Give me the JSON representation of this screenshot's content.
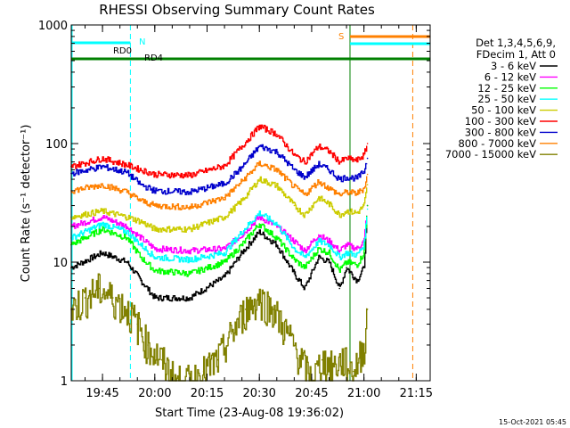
{
  "chart_data": {
    "type": "line",
    "title": "RHESSI Observing Summary Count Rates",
    "xlabel": "Start Time (23-Aug-08 19:36:02)",
    "ylabel": "Count Rate (s⁻¹ detector⁻¹)",
    "y_scale": "log",
    "ylim": [
      1,
      1000
    ],
    "xlim": [
      "19:36:02",
      "21:19:00"
    ],
    "x_ticks": [
      "19:45",
      "20:00",
      "20:15",
      "20:30",
      "20:45",
      "21:00",
      "21:15"
    ],
    "y_ticks": [
      "1",
      "10",
      "100",
      "1000"
    ],
    "legend_position": "top-right",
    "legend_header": [
      "Det 1,3,4,5,6,9,",
      "FDecim 1, Att 0"
    ],
    "series": [
      {
        "name": "3 - 6 keV",
        "color": "#000000",
        "x": [
          "19:36",
          "19:45",
          "19:52",
          "19:56",
          "20:00",
          "20:10",
          "20:20",
          "20:25",
          "20:30",
          "20:35",
          "20:40",
          "20:43",
          "20:47",
          "20:50",
          "20:53",
          "20:55",
          "20:58",
          "21:00",
          "21:01"
        ],
        "y": [
          9,
          12,
          10,
          7,
          5,
          5,
          7.5,
          12,
          18,
          14,
          8,
          6,
          11,
          10,
          6,
          9,
          7,
          9,
          30
        ]
      },
      {
        "name": "6 - 12 keV",
        "color": "#ff00ff",
        "x": [
          "19:36",
          "19:45",
          "19:52",
          "19:56",
          "20:00",
          "20:10",
          "20:20",
          "20:25",
          "20:30",
          "20:35",
          "20:40",
          "20:43",
          "20:47",
          "20:50",
          "20:53",
          "20:55",
          "20:58",
          "21:00",
          "21:01"
        ],
        "y": [
          20,
          24,
          20,
          16,
          13,
          12.5,
          13,
          17,
          24,
          20,
          15,
          12.5,
          17,
          15,
          12.5,
          14,
          13,
          15,
          30
        ]
      },
      {
        "name": "12 - 25 keV",
        "color": "#00ff00",
        "x": [
          "19:36",
          "19:45",
          "19:52",
          "19:56",
          "20:00",
          "20:10",
          "20:20",
          "20:25",
          "20:30",
          "20:35",
          "20:40",
          "20:43",
          "20:47",
          "20:50",
          "20:53",
          "20:55",
          "20:58",
          "21:00",
          "21:01"
        ],
        "y": [
          14,
          19,
          16,
          11,
          8.5,
          8,
          10,
          14,
          21,
          16,
          10.5,
          9,
          13,
          12,
          8.5,
          10,
          9.5,
          12,
          30
        ]
      },
      {
        "name": "25 - 50 keV",
        "color": "#00ffff",
        "x": [
          "19:36",
          "19:45",
          "19:52",
          "19:56",
          "20:00",
          "20:10",
          "20:20",
          "20:25",
          "20:30",
          "20:35",
          "20:40",
          "20:43",
          "20:47",
          "20:50",
          "20:53",
          "20:55",
          "20:58",
          "21:00",
          "21:01"
        ],
        "y": [
          16,
          21,
          18,
          14,
          11,
          10.5,
          12,
          18,
          26,
          21,
          13,
          11,
          15,
          14,
          11,
          12,
          11.5,
          14,
          28
        ]
      },
      {
        "name": "50 - 100 keV",
        "color": "#cccc00",
        "x": [
          "19:36",
          "19:45",
          "19:52",
          "19:56",
          "20:00",
          "20:10",
          "20:20",
          "20:25",
          "20:30",
          "20:35",
          "20:40",
          "20:43",
          "20:47",
          "20:50",
          "20:53",
          "20:55",
          "20:58",
          "21:00",
          "21:01"
        ],
        "y": [
          24,
          27,
          24,
          22,
          19,
          19,
          24,
          33,
          50,
          44,
          30,
          25,
          35,
          31,
          25,
          27,
          26,
          30,
          45
        ]
      },
      {
        "name": "100 - 300 keV",
        "color": "#ff0000",
        "x": [
          "19:36",
          "19:45",
          "19:52",
          "19:56",
          "20:00",
          "20:10",
          "20:20",
          "20:25",
          "20:30",
          "20:35",
          "20:40",
          "20:43",
          "20:47",
          "20:50",
          "20:53",
          "20:55",
          "20:58",
          "21:00",
          "21:01"
        ],
        "y": [
          64,
          75,
          66,
          60,
          55,
          54,
          65,
          95,
          140,
          120,
          80,
          70,
          95,
          86,
          70,
          75,
          72,
          80,
          100
        ]
      },
      {
        "name": "300 - 800 keV",
        "color": "#0000cc",
        "x": [
          "19:36",
          "19:45",
          "19:52",
          "19:56",
          "20:00",
          "20:10",
          "20:20",
          "20:25",
          "20:30",
          "20:35",
          "20:40",
          "20:43",
          "20:47",
          "20:50",
          "20:53",
          "20:55",
          "20:58",
          "21:00",
          "21:01"
        ],
        "y": [
          56,
          64,
          57,
          45,
          40,
          39,
          46,
          63,
          95,
          85,
          60,
          52,
          67,
          60,
          50,
          52,
          51,
          58,
          75
        ]
      },
      {
        "name": "800 - 7000 keV",
        "color": "#ff8000",
        "x": [
          "19:36",
          "19:45",
          "19:52",
          "19:56",
          "20:00",
          "20:10",
          "20:20",
          "20:25",
          "20:30",
          "20:35",
          "20:40",
          "20:43",
          "20:47",
          "20:50",
          "20:53",
          "20:55",
          "20:58",
          "21:00",
          "21:01"
        ],
        "y": [
          40,
          45,
          39,
          33,
          30,
          29,
          35,
          48,
          68,
          60,
          43,
          37,
          48,
          42,
          37,
          39,
          38,
          42,
          55
        ]
      },
      {
        "name": "7000 - 15000 keV",
        "color": "#808000",
        "x": [
          "19:36",
          "19:40",
          "19:44",
          "19:48",
          "19:52",
          "19:55",
          "19:58",
          "20:02",
          "20:06",
          "20:10",
          "20:14",
          "20:18",
          "20:22",
          "20:26",
          "20:30",
          "20:34",
          "20:38",
          "20:42",
          "20:45",
          "20:48",
          "20:51",
          "20:54",
          "20:57",
          "21:00",
          "21:01"
        ],
        "y": [
          4,
          5,
          6,
          5,
          4,
          3,
          2,
          1.5,
          1,
          1,
          1.2,
          1.5,
          2.5,
          4,
          5,
          4,
          2.5,
          1.5,
          1,
          1.5,
          1.3,
          1.5,
          1.2,
          2,
          4
        ]
      }
    ],
    "annotations": [
      {
        "text": "RD0",
        "color": "#00ffff"
      },
      {
        "text": "RD4",
        "color": "#008000"
      },
      {
        "text": "N",
        "color": "#00ffff"
      },
      {
        "text": "S",
        "color": "#ff8000"
      }
    ],
    "timestamp": "15-Oct-2021 05:45"
  }
}
